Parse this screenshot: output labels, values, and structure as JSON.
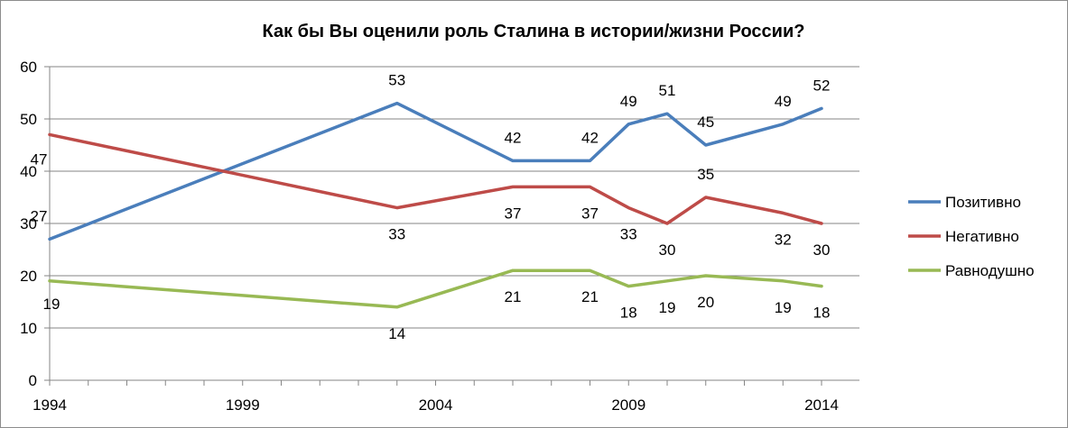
{
  "chart_data": {
    "type": "line",
    "title": "Как бы Вы оценили роль Сталина в истории/жизни России?",
    "xlabel": "",
    "ylabel": "",
    "xlim": [
      1994,
      2014
    ],
    "ylim": [
      0,
      60
    ],
    "yticks": [
      0,
      10,
      20,
      30,
      40,
      50,
      60
    ],
    "xticks": [
      1994,
      1999,
      2004,
      2009,
      2014
    ],
    "grid": true,
    "legend": "right",
    "x": [
      1994,
      2003,
      2006,
      2008,
      2009,
      2010,
      2011,
      2013,
      2014
    ],
    "series": [
      {
        "name": "Позитивно",
        "color": "#4a7ebb",
        "values": [
          27,
          53,
          42,
          42,
          49,
          51,
          45,
          49,
          52
        ]
      },
      {
        "name": "Негативно",
        "color": "#be4b48",
        "values": [
          47,
          33,
          37,
          37,
          33,
          30,
          35,
          32,
          30
        ]
      },
      {
        "name": "Равнодушно",
        "color": "#98b954",
        "values": [
          19,
          14,
          21,
          21,
          18,
          19,
          20,
          19,
          18
        ]
      }
    ]
  }
}
